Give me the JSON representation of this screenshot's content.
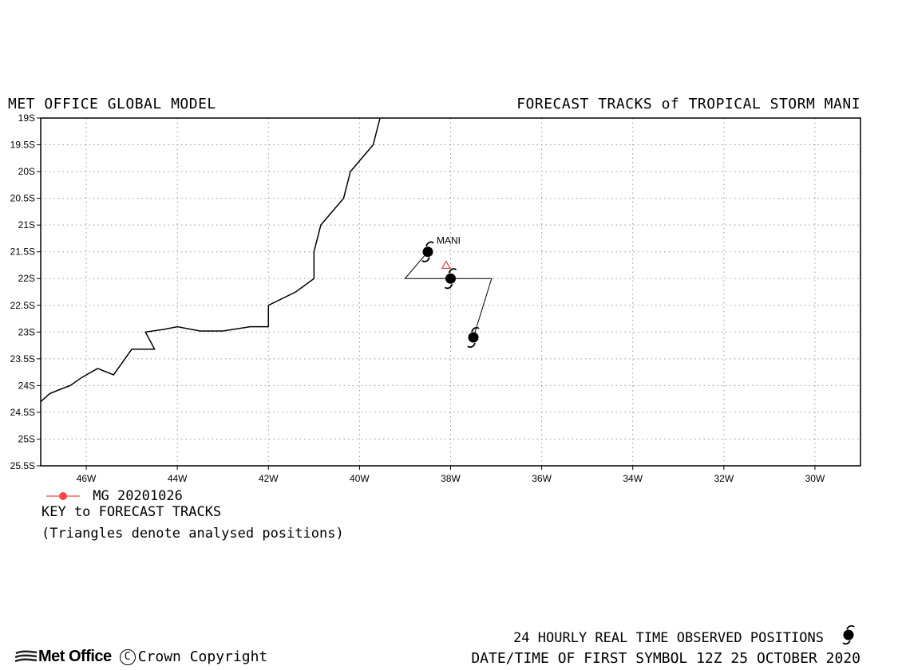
{
  "header": {
    "left_title": "MET OFFICE GLOBAL MODEL",
    "right_title": "FORECAST TRACKS of TROPICAL STORM MANI"
  },
  "chart_data": {
    "type": "map",
    "lon_range": [
      -47,
      -29
    ],
    "lat_range": [
      -25.5,
      -19
    ],
    "lat_ticks": [
      "19S",
      "19.5S",
      "20S",
      "20.5S",
      "21S",
      "21.5S",
      "22S",
      "22.5S",
      "23S",
      "23.5S",
      "24S",
      "24.5S",
      "25S",
      "25.5S"
    ],
    "lat_values": [
      -19,
      -19.5,
      -20,
      -20.5,
      -21,
      -21.5,
      -22,
      -22.5,
      -23,
      -23.5,
      -24,
      -24.5,
      -25,
      -25.5
    ],
    "lon_ticks": [
      "46W",
      "44W",
      "42W",
      "40W",
      "38W",
      "36W",
      "34W",
      "32W",
      "30W"
    ],
    "lon_values": [
      -46,
      -44,
      -42,
      -40,
      -38,
      -36,
      -34,
      -32,
      -30
    ],
    "grid": true,
    "coastline": [
      [
        -47,
        -24.3
      ],
      [
        -46.8,
        -24.15
      ],
      [
        -46.6,
        -24.08
      ],
      [
        -46.35,
        -24.0
      ],
      [
        -46.1,
        -23.85
      ],
      [
        -45.75,
        -23.68
      ],
      [
        -45.4,
        -23.8
      ],
      [
        -45.0,
        -23.32
      ],
      [
        -44.5,
        -23.32
      ],
      [
        -44.7,
        -23.0
      ],
      [
        -44.3,
        -22.95
      ],
      [
        -44.0,
        -22.9
      ],
      [
        -43.5,
        -22.98
      ],
      [
        -43.0,
        -22.98
      ],
      [
        -42.4,
        -22.9
      ],
      [
        -42.0,
        -22.9
      ],
      [
        -42.0,
        -22.5
      ],
      [
        -41.4,
        -22.25
      ],
      [
        -41.0,
        -22.0
      ],
      [
        -41.0,
        -21.5
      ],
      [
        -40.85,
        -21.0
      ],
      [
        -40.35,
        -20.5
      ],
      [
        -40.2,
        -20.0
      ],
      [
        -39.7,
        -19.5
      ],
      [
        -39.55,
        -19.0
      ]
    ],
    "observed_track": [
      [
        -38.5,
        -21.5
      ],
      [
        -39.0,
        -22.0
      ],
      [
        -38.0,
        -22.0
      ],
      [
        -37.1,
        -22.0
      ],
      [
        -37.5,
        -23.1
      ]
    ],
    "storm_symbols": [
      {
        "lon": -38.5,
        "lat": -21.5
      },
      {
        "lon": -38.0,
        "lat": -22.0
      },
      {
        "lon": -37.5,
        "lat": -23.1
      }
    ],
    "storm_label": {
      "text": "MANI",
      "lon": -38.5,
      "lat": -21.5
    },
    "analysed_triangle": {
      "lon": -38.1,
      "lat": -21.75,
      "color": "#e04040"
    },
    "legend": [
      {
        "name": "MG 20201026",
        "color": "#ff4444"
      }
    ]
  },
  "legend": {
    "series_label": "MG 20201026",
    "key_title": "KEY to FORECAST TRACKS",
    "note": "(Triangles denote analysed positions)"
  },
  "footer": {
    "logo": "Met Office",
    "copyright": "Crown Copyright",
    "observed_note": "24 HOURLY REAL TIME OBSERVED POSITIONS",
    "datetime_note": "DATE/TIME OF FIRST SYMBOL 12Z 25 OCTOBER 2020"
  }
}
